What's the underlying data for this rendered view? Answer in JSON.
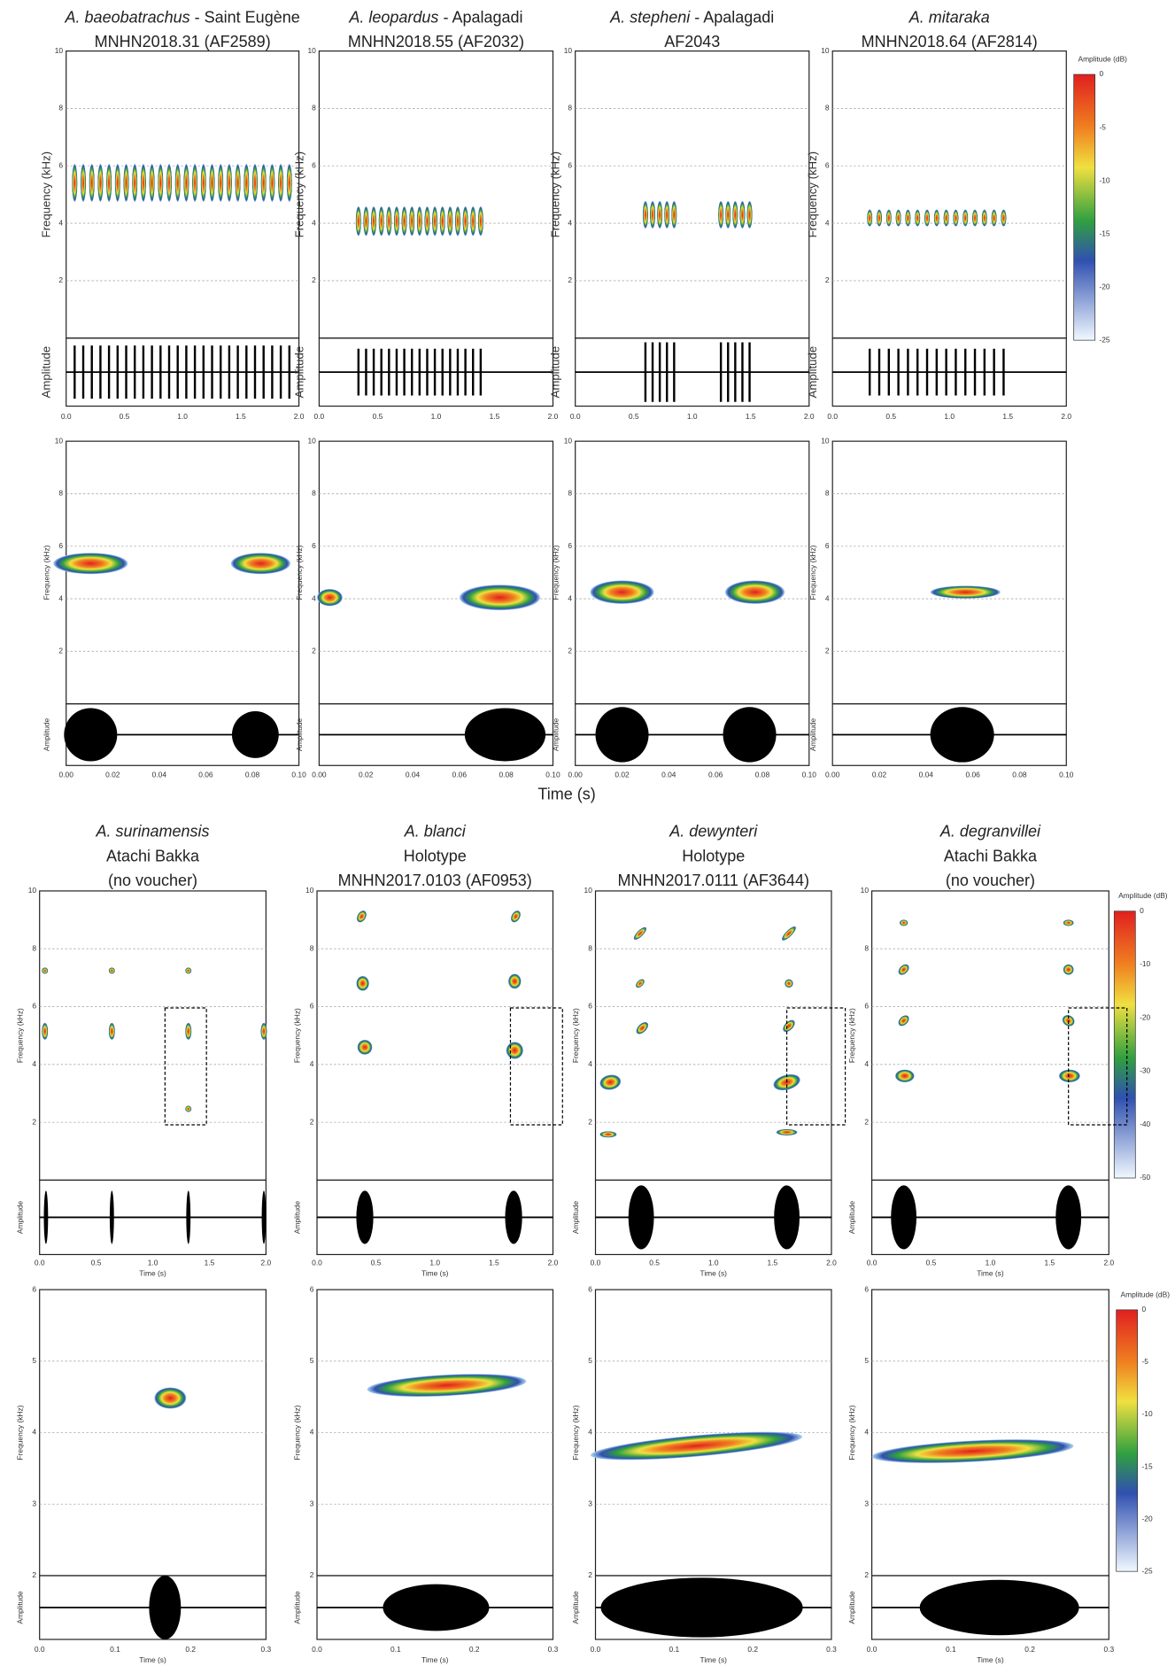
{
  "top_panels": [
    {
      "species": "A. baeobatrachus",
      "suffix": " - Saint Eugène",
      "lines": [
        "MNHN2018.31 (AF2589)"
      ]
    },
    {
      "species": "A. leopardus",
      "suffix": " - Apalagadi",
      "lines": [
        "MNHN2018.55 (AF2032)"
      ]
    },
    {
      "species": "A. stepheni",
      "suffix": " - Apalagadi",
      "lines": [
        "AF2043"
      ]
    },
    {
      "species": "A. mitaraka",
      "suffix": "",
      "lines": [
        "MNHN2018.64 (AF2814)"
      ]
    }
  ],
  "bottom_panels": [
    {
      "species": "A. surinamensis",
      "lines": [
        "Atachi Bakka",
        "(no voucher)"
      ]
    },
    {
      "species": "A. blanci",
      "lines": [
        "Holotype",
        "MNHN2017.0103 (AF0953)"
      ]
    },
    {
      "species": "A. dewynteri",
      "lines": [
        "Holotype",
        "MNHN2017.0111 (AF3644)"
      ]
    },
    {
      "species": "A. degranvillei",
      "lines": [
        "Atachi Bakka",
        "(no voucher)"
      ]
    }
  ],
  "blocks": [
    {
      "y_label": "Frequency (kHz)",
      "y_ticks": [
        "2",
        "4",
        "6",
        "8",
        "10"
      ],
      "amp_label": "Amplitude",
      "x_ticks": [
        "0.0",
        "0.5",
        "1.0",
        "1.5",
        "2.0"
      ]
    },
    {
      "y_label": "Frequency (kHz)",
      "y_ticks": [
        "2",
        "4",
        "6",
        "8",
        "10"
      ],
      "amp_label": "Amplitude",
      "x_ticks": [
        "0.00",
        "0.02",
        "0.04",
        "0.06",
        "0.08",
        "0.10"
      ],
      "x_label": "Time (s)"
    },
    {
      "y_label": "Frequency (kHz)",
      "y_ticks": [
        "2",
        "4",
        "6",
        "8",
        "10"
      ],
      "amp_label": "Amplitude",
      "x_ticks": [
        "0.0",
        "0.5",
        "1.0",
        "1.5",
        "2.0"
      ],
      "x_label": "Time (s)"
    },
    {
      "y_label": "Frequency (kHz)",
      "y_ticks": [
        "2",
        "3",
        "4",
        "5",
        "6"
      ],
      "amp_label": "Amplitude",
      "x_ticks": [
        "0.0",
        "0.1",
        "0.2",
        "0.3"
      ],
      "x_label": "Time (s)"
    }
  ],
  "colorbars": [
    {
      "title": "Amplitude (dB)",
      "ticks": [
        "0",
        "-5",
        "-10",
        "-15",
        "-20",
        "-25"
      ]
    },
    {
      "title": "Amplitude (dB)",
      "ticks": [
        "0",
        "-10",
        "-20",
        "-30",
        "-40",
        "-50"
      ]
    },
    {
      "title": "Amplitude (dB)",
      "ticks": [
        "0",
        "-5",
        "-10",
        "-15",
        "-20",
        "-25"
      ]
    }
  ]
}
